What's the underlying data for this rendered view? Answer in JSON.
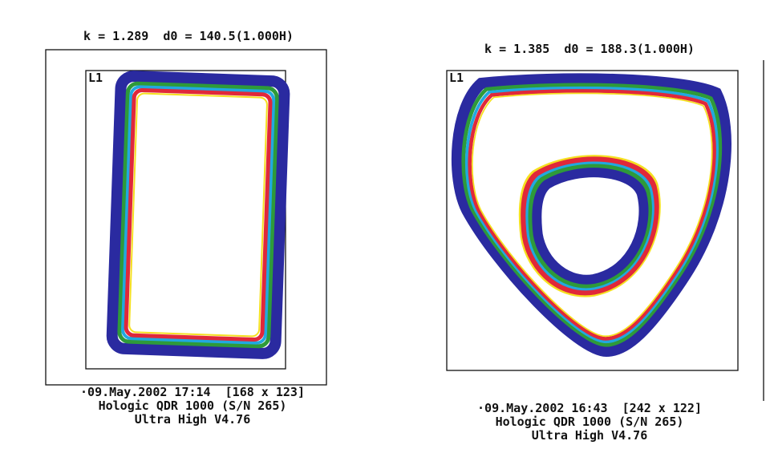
{
  "panels": [
    {
      "header": "k = 1.289  d0 = 140.5(1.000H)",
      "region_label": "L1",
      "footer": [
        "·09.May.2002 17:14  [168 x 123]",
        "Hologic QDR 1000 (S/N 265)",
        "Ultra High V4.76"
      ]
    },
    {
      "header": "k = 1.385  d0 = 188.3(1.000H)",
      "region_label": "L1",
      "footer": [
        "·09.May.2002 16:43  [242 x 122]",
        "Hologic QDR 1000 (S/N 265)",
        "Ultra High V4.76"
      ]
    }
  ]
}
